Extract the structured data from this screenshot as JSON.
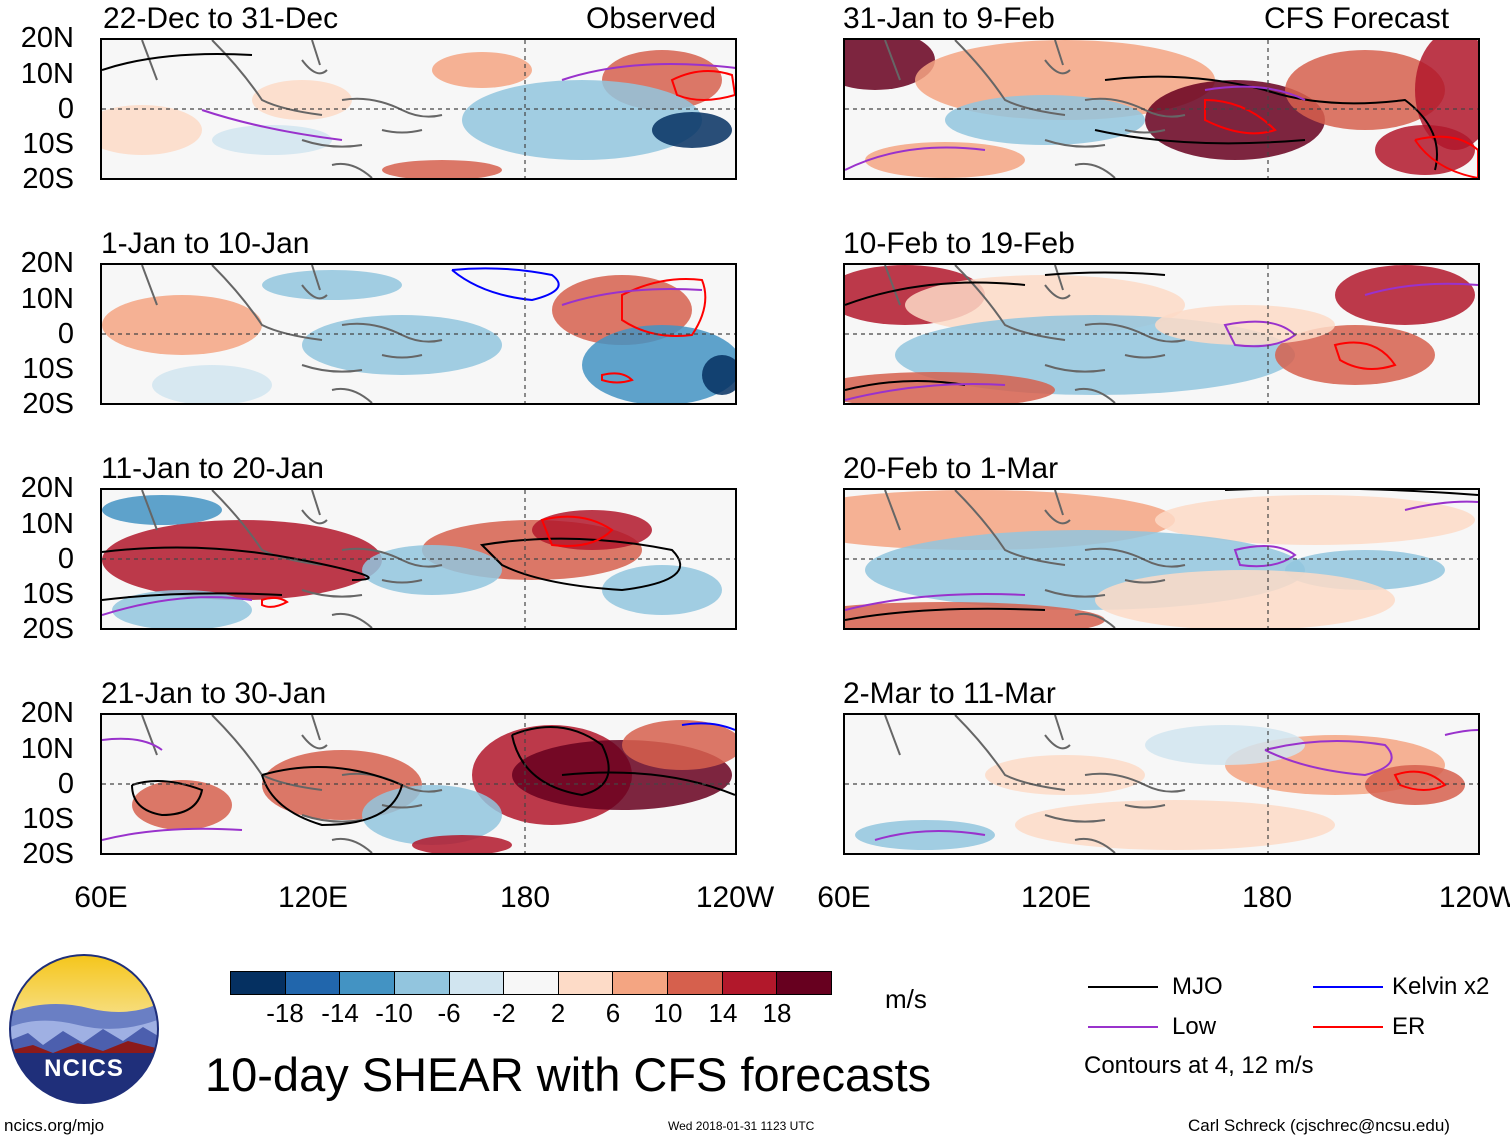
{
  "header": {
    "left_tag": "Observed",
    "right_tag": "CFS Forecast"
  },
  "panels_left": [
    {
      "title": "22-Dec to 31-Dec"
    },
    {
      "title": "1-Jan to 10-Jan"
    },
    {
      "title": "11-Jan to 20-Jan"
    },
    {
      "title": "21-Jan to 30-Jan"
    }
  ],
  "panels_right": [
    {
      "title": "31-Jan to 9-Feb"
    },
    {
      "title": "10-Feb to 19-Feb"
    },
    {
      "title": "20-Feb to 1-Mar"
    },
    {
      "title": "2-Mar to 11-Mar"
    }
  ],
  "lat_labels": [
    "20N",
    "10N",
    "0",
    "10S",
    "20S"
  ],
  "lon_labels": [
    "60E",
    "120E",
    "180",
    "120W"
  ],
  "colorbar": {
    "ticks": [
      "-18",
      "-14",
      "-10",
      "-6",
      "-2",
      "2",
      "6",
      "10",
      "14",
      "18"
    ],
    "colors": [
      "#053061",
      "#2166ac",
      "#4393c3",
      "#92c5de",
      "#d1e5f0",
      "#f7f7f7",
      "#fddbc7",
      "#f4a582",
      "#d6604d",
      "#b2182b",
      "#67001f"
    ],
    "unit": "m/s"
  },
  "legend": {
    "mjo": {
      "label": "MJO",
      "color": "#000000"
    },
    "kelvin": {
      "label": "Kelvin x2",
      "color": "#0000ff"
    },
    "low": {
      "label": "Low",
      "color": "#9932cc"
    },
    "er": {
      "label": "ER",
      "color": "#ff0000"
    },
    "note": "Contours at 4, 12 m/s"
  },
  "main_title": "10-day SHEAR with CFS forecasts",
  "logo_text": "NCICS",
  "footer": {
    "url": "ncics.org/mjo",
    "timestamp": "Wed 2018-01-31 1123 UTC",
    "author": "Carl Schreck (cjschrec@ncsu.edu)"
  }
}
